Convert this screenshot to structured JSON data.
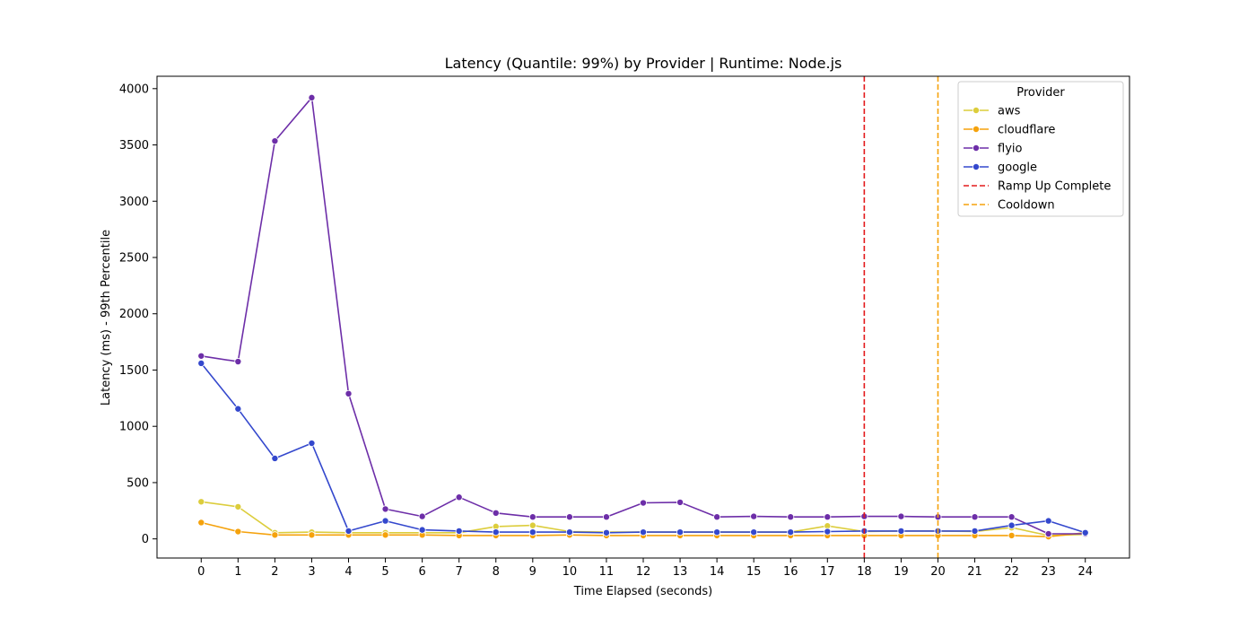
{
  "chart_data": {
    "type": "line",
    "title": "Latency (Quantile: 99%) by Provider | Runtime: Node.js",
    "xlabel": "Time Elapsed (seconds)",
    "ylabel": "Latency (ms) - 99th Percentile",
    "x": [
      0,
      1,
      2,
      3,
      4,
      5,
      6,
      7,
      8,
      9,
      10,
      11,
      12,
      13,
      14,
      15,
      16,
      17,
      18,
      19,
      20,
      21,
      22,
      23,
      24
    ],
    "xlim": [
      -1.2,
      25.2
    ],
    "ylim": [
      -170,
      4110
    ],
    "yticks": [
      0,
      500,
      1000,
      1500,
      2000,
      2500,
      3000,
      3500,
      4000
    ],
    "grid": false,
    "legend": {
      "title": "Provider",
      "placement": "top-right"
    },
    "series": [
      {
        "name": "aws",
        "color": "#dccd3c",
        "values": [
          330,
          285,
          55,
          60,
          55,
          55,
          55,
          55,
          110,
          120,
          65,
          60,
          60,
          60,
          60,
          60,
          60,
          115,
          65,
          70,
          70,
          65,
          100,
          30,
          40
        ]
      },
      {
        "name": "cloudflare",
        "color": "#f5a20c",
        "values": [
          145,
          65,
          35,
          35,
          35,
          35,
          35,
          30,
          30,
          30,
          35,
          30,
          30,
          30,
          30,
          30,
          30,
          30,
          30,
          30,
          30,
          30,
          30,
          20,
          55
        ]
      },
      {
        "name": "flyio",
        "color": "#6d2ea8",
        "values": [
          1625,
          1575,
          3535,
          3920,
          1290,
          265,
          200,
          370,
          230,
          195,
          195,
          195,
          320,
          325,
          195,
          200,
          195,
          195,
          200,
          200,
          195,
          195,
          195,
          45,
          45
        ]
      },
      {
        "name": "google",
        "color": "#3448cd",
        "values": [
          1560,
          1155,
          715,
          850,
          70,
          160,
          80,
          70,
          60,
          60,
          60,
          55,
          60,
          60,
          60,
          60,
          60,
          65,
          70,
          70,
          70,
          70,
          120,
          160,
          55
        ]
      }
    ],
    "vlines": [
      {
        "name": "Ramp Up Complete",
        "x": 18,
        "color": "#e31a1c",
        "style": "dashed"
      },
      {
        "name": "Cooldown",
        "x": 20,
        "color": "#f5a20c",
        "style": "dashed"
      }
    ]
  }
}
